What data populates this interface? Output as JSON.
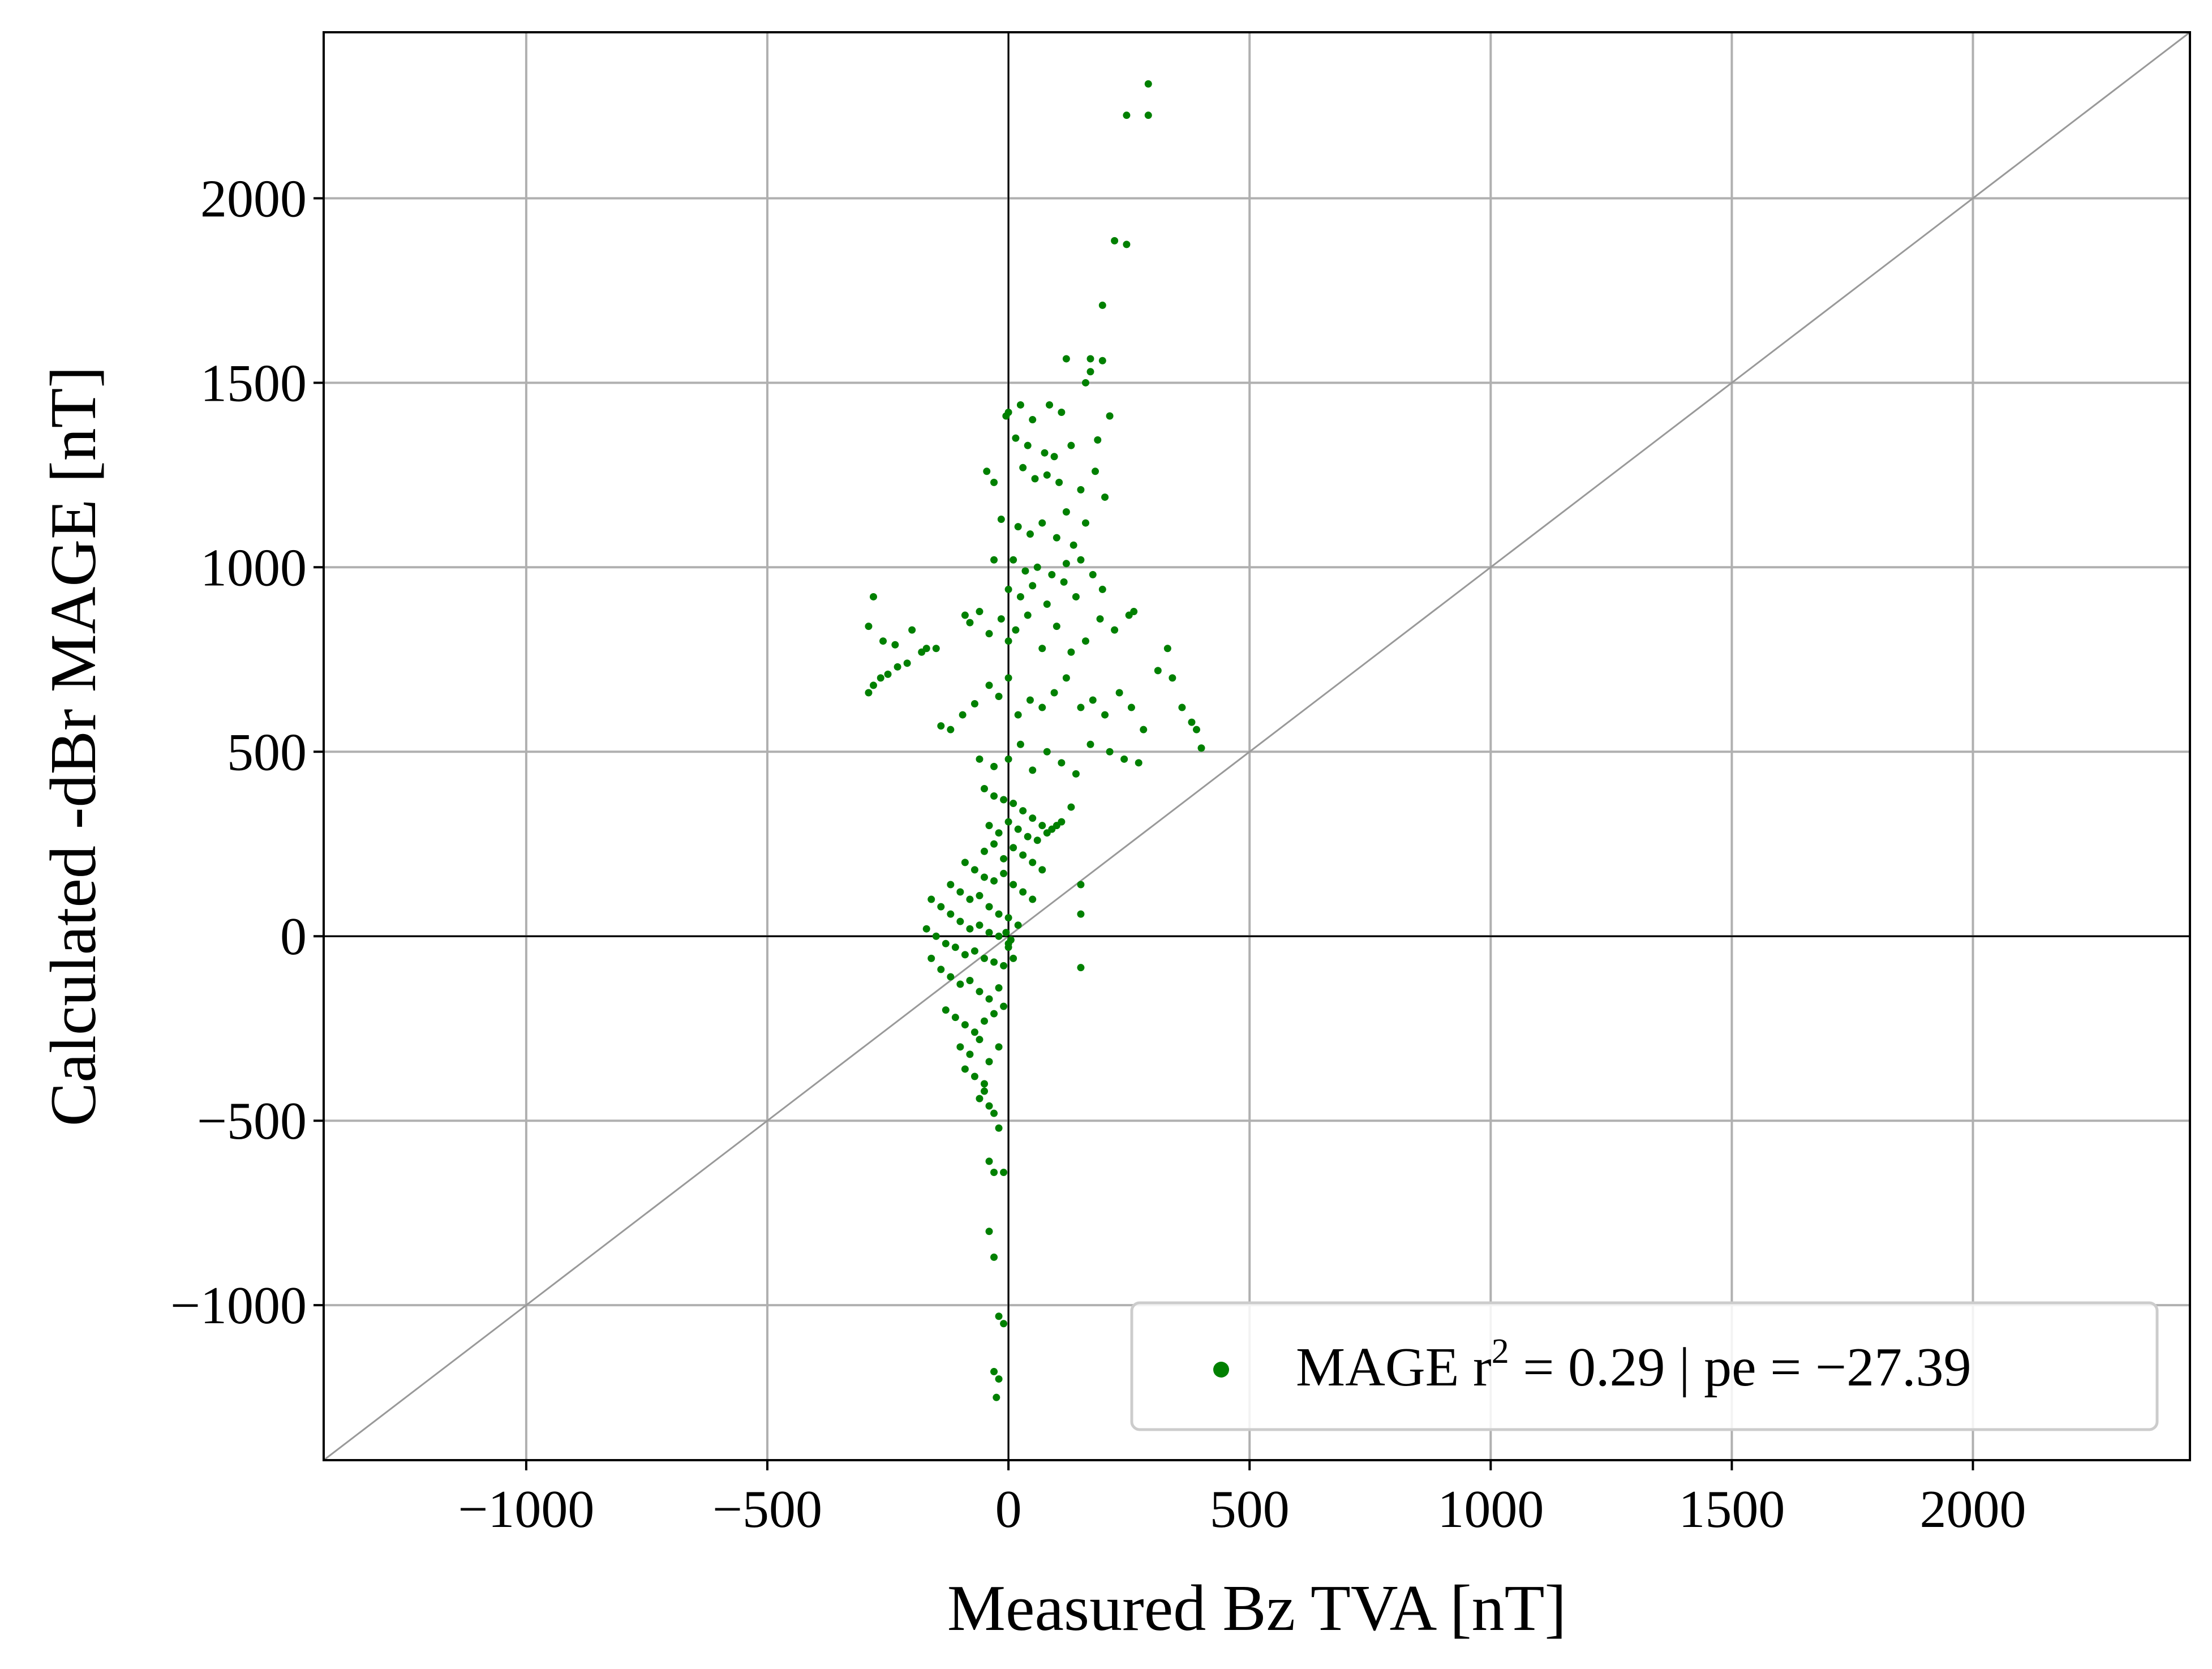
{
  "chart_data": {
    "type": "scatter",
    "xlabel": "Measured Bz TVA [nT]",
    "ylabel": "Calculated -dBr MAGE [nT]",
    "xlim": [
      -1420,
      2450
    ],
    "ylim": [
      -1420,
      2450
    ],
    "x_ticks": [
      -1000,
      -500,
      0,
      500,
      1000,
      1500,
      2000
    ],
    "y_ticks": [
      -1000,
      -500,
      0,
      500,
      1000,
      1500,
      2000
    ],
    "x_tick_labels": [
      "−1000",
      "−500",
      "0",
      "500",
      "1000",
      "1500",
      "2000"
    ],
    "y_tick_labels": [
      "−1000",
      "−500",
      "0",
      "500",
      "1000",
      "1500",
      "2000"
    ],
    "grid": true,
    "zero_lines": true,
    "reference_line": "y = x",
    "legend_position": "lower-right",
    "colors": {
      "series": "#008000",
      "grid": "#b0b0b0",
      "reference": "#999999",
      "axes": "#000000"
    },
    "series": [
      {
        "name": "MAGE",
        "legend_prefix": "MAGE r",
        "legend_sup": "2",
        "legend_suffix": " = 0.29 | pe = −27.39",
        "points": [
          [
            290,
            2310
          ],
          [
            245,
            2225
          ],
          [
            290,
            2225
          ],
          [
            220,
            1885
          ],
          [
            245,
            1875
          ],
          [
            195,
            1710
          ],
          [
            120,
            1565
          ],
          [
            170,
            1565
          ],
          [
            195,
            1560
          ],
          [
            170,
            1530
          ],
          [
            210,
            1410
          ],
          [
            185,
            1345
          ],
          [
            160,
            1500
          ],
          [
            -30,
            1230
          ],
          [
            -5,
            1410
          ],
          [
            0,
            1420
          ],
          [
            25,
            1440
          ],
          [
            50,
            1400
          ],
          [
            85,
            1440
          ],
          [
            110,
            1420
          ],
          [
            15,
            1350
          ],
          [
            40,
            1330
          ],
          [
            75,
            1310
          ],
          [
            95,
            1300
          ],
          [
            130,
            1330
          ],
          [
            -45,
            1260
          ],
          [
            30,
            1270
          ],
          [
            55,
            1240
          ],
          [
            80,
            1250
          ],
          [
            105,
            1230
          ],
          [
            150,
            1210
          ],
          [
            180,
            1260
          ],
          [
            200,
            1190
          ],
          [
            120,
            1150
          ],
          [
            -15,
            1130
          ],
          [
            20,
            1110
          ],
          [
            45,
            1090
          ],
          [
            70,
            1120
          ],
          [
            100,
            1080
          ],
          [
            135,
            1060
          ],
          [
            160,
            1120
          ],
          [
            -30,
            1020
          ],
          [
            10,
            1020
          ],
          [
            35,
            990
          ],
          [
            60,
            1000
          ],
          [
            90,
            980
          ],
          [
            120,
            1010
          ],
          [
            150,
            1020
          ],
          [
            0,
            940
          ],
          [
            25,
            920
          ],
          [
            50,
            950
          ],
          [
            80,
            900
          ],
          [
            115,
            960
          ],
          [
            140,
            920
          ],
          [
            175,
            980
          ],
          [
            195,
            940
          ],
          [
            250,
            870
          ],
          [
            -280,
            920
          ],
          [
            -290,
            840
          ],
          [
            -260,
            800
          ],
          [
            -235,
            790
          ],
          [
            -200,
            830
          ],
          [
            -170,
            780
          ],
          [
            -150,
            780
          ],
          [
            -265,
            700
          ],
          [
            -250,
            710
          ],
          [
            -230,
            730
          ],
          [
            -210,
            740
          ],
          [
            -180,
            770
          ],
          [
            -290,
            660
          ],
          [
            -280,
            680
          ],
          [
            -90,
            870
          ],
          [
            -80,
            850
          ],
          [
            -60,
            880
          ],
          [
            -40,
            820
          ],
          [
            -15,
            860
          ],
          [
            0,
            800
          ],
          [
            15,
            830
          ],
          [
            40,
            870
          ],
          [
            70,
            780
          ],
          [
            100,
            840
          ],
          [
            130,
            770
          ],
          [
            160,
            800
          ],
          [
            190,
            860
          ],
          [
            220,
            830
          ],
          [
            260,
            880
          ],
          [
            -140,
            570
          ],
          [
            -120,
            560
          ],
          [
            -95,
            600
          ],
          [
            -70,
            630
          ],
          [
            -40,
            680
          ],
          [
            -20,
            650
          ],
          [
            0,
            700
          ],
          [
            20,
            600
          ],
          [
            45,
            640
          ],
          [
            70,
            620
          ],
          [
            95,
            660
          ],
          [
            120,
            700
          ],
          [
            150,
            620
          ],
          [
            175,
            640
          ],
          [
            200,
            600
          ],
          [
            230,
            660
          ],
          [
            255,
            620
          ],
          [
            280,
            560
          ],
          [
            310,
            720
          ],
          [
            330,
            780
          ],
          [
            340,
            700
          ],
          [
            360,
            620
          ],
          [
            380,
            580
          ],
          [
            390,
            560
          ],
          [
            400,
            510
          ],
          [
            -60,
            480
          ],
          [
            -30,
            460
          ],
          [
            0,
            480
          ],
          [
            25,
            520
          ],
          [
            50,
            450
          ],
          [
            80,
            500
          ],
          [
            110,
            470
          ],
          [
            140,
            440
          ],
          [
            170,
            520
          ],
          [
            210,
            500
          ],
          [
            240,
            480
          ],
          [
            270,
            470
          ],
          [
            -50,
            400
          ],
          [
            -30,
            380
          ],
          [
            -10,
            370
          ],
          [
            10,
            360
          ],
          [
            30,
            340
          ],
          [
            50,
            320
          ],
          [
            70,
            300
          ],
          [
            90,
            290
          ],
          [
            110,
            310
          ],
          [
            130,
            350
          ],
          [
            -40,
            300
          ],
          [
            -20,
            280
          ],
          [
            0,
            310
          ],
          [
            20,
            290
          ],
          [
            40,
            270
          ],
          [
            60,
            260
          ],
          [
            80,
            280
          ],
          [
            100,
            300
          ],
          [
            -50,
            230
          ],
          [
            -30,
            250
          ],
          [
            -10,
            210
          ],
          [
            10,
            240
          ],
          [
            30,
            220
          ],
          [
            50,
            200
          ],
          [
            70,
            180
          ],
          [
            -90,
            200
          ],
          [
            -70,
            180
          ],
          [
            -50,
            160
          ],
          [
            -30,
            150
          ],
          [
            -10,
            170
          ],
          [
            10,
            140
          ],
          [
            30,
            120
          ],
          [
            50,
            100
          ],
          [
            -120,
            140
          ],
          [
            -100,
            120
          ],
          [
            -80,
            100
          ],
          [
            -60,
            110
          ],
          [
            -40,
            80
          ],
          [
            -20,
            60
          ],
          [
            0,
            50
          ],
          [
            20,
            30
          ],
          [
            -160,
            100
          ],
          [
            -140,
            80
          ],
          [
            -120,
            60
          ],
          [
            -100,
            40
          ],
          [
            -80,
            20
          ],
          [
            -60,
            30
          ],
          [
            -40,
            10
          ],
          [
            -20,
            0
          ],
          [
            0,
            -20
          ],
          [
            -170,
            20
          ],
          [
            -150,
            0
          ],
          [
            -130,
            -20
          ],
          [
            -110,
            -30
          ],
          [
            -90,
            -50
          ],
          [
            -70,
            -40
          ],
          [
            -50,
            -60
          ],
          [
            -30,
            -70
          ],
          [
            -10,
            -80
          ],
          [
            -160,
            -60
          ],
          [
            -140,
            -90
          ],
          [
            -120,
            -110
          ],
          [
            -100,
            -130
          ],
          [
            -80,
            -120
          ],
          [
            -60,
            -150
          ],
          [
            -40,
            -170
          ],
          [
            -20,
            -140
          ],
          [
            -130,
            -200
          ],
          [
            -110,
            -220
          ],
          [
            -90,
            -240
          ],
          [
            -70,
            -260
          ],
          [
            -50,
            -230
          ],
          [
            -30,
            -210
          ],
          [
            -10,
            -190
          ],
          [
            -100,
            -300
          ],
          [
            -80,
            -320
          ],
          [
            -60,
            -280
          ],
          [
            -40,
            -340
          ],
          [
            -20,
            -300
          ],
          [
            -90,
            -360
          ],
          [
            -70,
            -380
          ],
          [
            -50,
            -400
          ],
          [
            -60,
            -440
          ],
          [
            -40,
            -460
          ],
          [
            -30,
            -480
          ],
          [
            -50,
            -420
          ],
          [
            -20,
            -520
          ],
          [
            -40,
            -610
          ],
          [
            -30,
            -640
          ],
          [
            -10,
            -640
          ],
          [
            -40,
            -800
          ],
          [
            -30,
            -870
          ],
          [
            -20,
            -1030
          ],
          [
            -10,
            -1050
          ],
          [
            -30,
            -1180
          ],
          [
            -20,
            -1200
          ],
          [
            -25,
            -1250
          ],
          [
            150,
            140
          ],
          [
            150,
            60
          ],
          [
            150,
            -85
          ],
          [
            10,
            -60
          ],
          [
            0,
            -30
          ],
          [
            -5,
            10
          ],
          [
            5,
            -10
          ]
        ]
      }
    ]
  }
}
